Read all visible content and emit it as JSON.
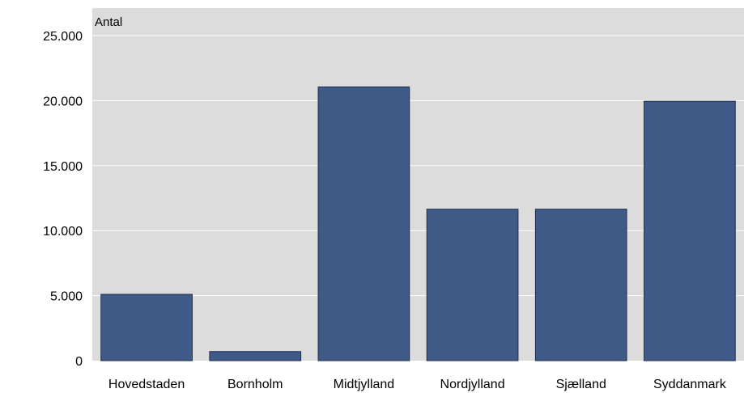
{
  "chart_data": {
    "type": "bar",
    "ylabel": "Antal",
    "categories": [
      "Hovedstaden",
      "Bornholm",
      "Midtjylland",
      "Nordjylland",
      "Sjælland",
      "Syddanmark"
    ],
    "values": [
      5100,
      700,
      21050,
      11650,
      11650,
      19950
    ],
    "ylim": [
      0,
      25000
    ],
    "yticks": [
      0,
      5000,
      10000,
      15000,
      20000,
      25000
    ],
    "ytick_labels": [
      "0",
      "5.000",
      "10.000",
      "15.000",
      "20.000",
      "25.000"
    ],
    "grid": true,
    "legend": "none",
    "colors": {
      "bar": "#3f5a87",
      "bar_edge": "#1f2f4f",
      "plot_background": "#dcdcdc",
      "gridline": "#ffffff"
    }
  }
}
